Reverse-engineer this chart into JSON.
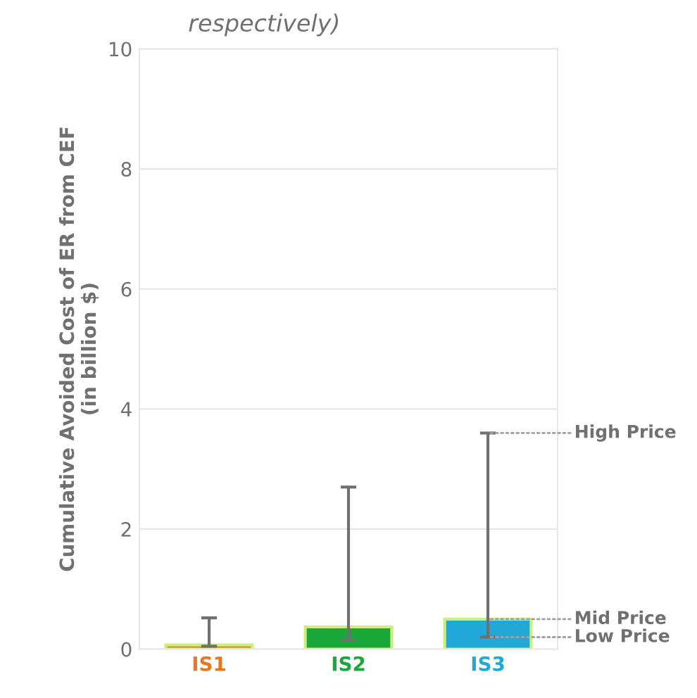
{
  "chart_data": {
    "type": "bar",
    "title": "respectively)",
    "ylabel": "Cumulative Avoided Cost of ER from CEF\n(in billion $)",
    "categories": [
      "IS1",
      "IS2",
      "IS3"
    ],
    "values": [
      0.07,
      0.37,
      0.5
    ],
    "colors": [
      "#e8781e",
      "#1aa83a",
      "#22a8d8"
    ],
    "errors": [
      [
        0.05,
        0.52
      ],
      [
        0.15,
        2.7
      ],
      [
        0.2,
        3.6
      ]
    ],
    "ylim": [
      0,
      10
    ],
    "yticks": [
      0,
      2,
      4,
      6,
      8,
      10
    ],
    "grid": "y",
    "annotations": [
      {
        "text": "High Price",
        "x": "IS3",
        "y": 3.6
      },
      {
        "text": "Mid Price",
        "x": "IS3",
        "y": 0.5
      },
      {
        "text": "Low Price",
        "x": "IS3",
        "y": 0.2
      }
    ]
  }
}
